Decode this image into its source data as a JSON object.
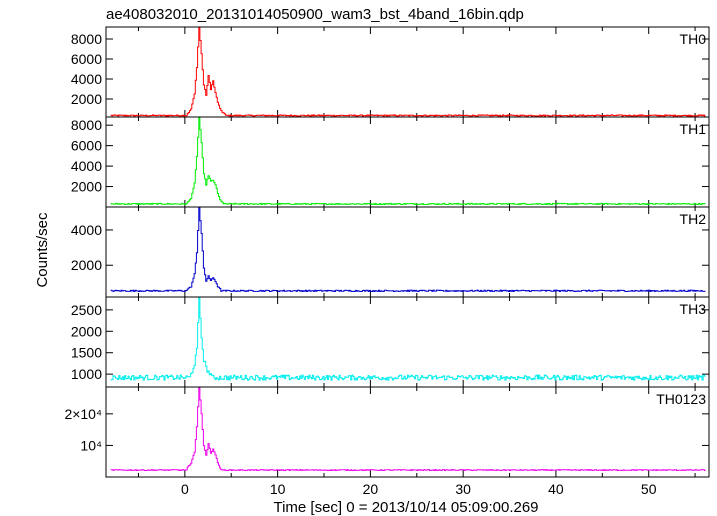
{
  "chart_data": {
    "type": "line",
    "title": "ae408032010_20131014050900_wam3_bst_4band_16bin.qdp",
    "xlabel": "Time [sec] 0 = 2013/10/14 05:09:00.269",
    "ylabel": "Counts/sec",
    "xlim": [
      -8.5,
      56.5
    ],
    "x_ticks": [
      0,
      10,
      20,
      30,
      40,
      50
    ],
    "x_tick_labels": [
      "0",
      "10",
      "20",
      "30",
      "40",
      "50"
    ],
    "grid": false,
    "panels": [
      {
        "name": "TH0",
        "color": "#ff0000",
        "ylim": [
          200,
          9200
        ],
        "y_ticks": [
          2000,
          4000,
          6000,
          8000
        ],
        "y_tick_labels": [
          "2000",
          "4000",
          "6000",
          "8000"
        ],
        "baseline": 350,
        "noise": 60,
        "burst": [
          [
            0.2,
            500
          ],
          [
            0.6,
            900
          ],
          [
            1.0,
            2500
          ],
          [
            1.25,
            5200
          ],
          [
            1.5,
            9200
          ],
          [
            1.75,
            6500
          ],
          [
            2.0,
            3400
          ],
          [
            2.25,
            2400
          ],
          [
            2.5,
            4300
          ],
          [
            2.75,
            3000
          ],
          [
            3.0,
            3800
          ],
          [
            3.25,
            2600
          ],
          [
            3.5,
            1700
          ],
          [
            3.75,
            1000
          ],
          [
            4.0,
            700
          ],
          [
            4.25,
            500
          ]
        ]
      },
      {
        "name": "TH1",
        "color": "#00ee00",
        "ylim": [
          0,
          8800
        ],
        "y_ticks": [
          2000,
          4000,
          6000,
          8000
        ],
        "y_tick_labels": [
          "2000",
          "4000",
          "6000",
          "8000"
        ],
        "baseline": 300,
        "noise": 60,
        "burst": [
          [
            0.2,
            400
          ],
          [
            0.6,
            800
          ],
          [
            1.0,
            2300
          ],
          [
            1.25,
            4900
          ],
          [
            1.5,
            8800
          ],
          [
            1.75,
            6300
          ],
          [
            2.0,
            3200
          ],
          [
            2.25,
            2200
          ],
          [
            2.5,
            3100
          ],
          [
            2.75,
            2500
          ],
          [
            3.0,
            2600
          ],
          [
            3.25,
            2200
          ],
          [
            3.5,
            1300
          ],
          [
            3.75,
            700
          ],
          [
            4.0,
            500
          ]
        ]
      },
      {
        "name": "TH2",
        "color": "#0000cc",
        "ylim": [
          200,
          5300
        ],
        "y_ticks": [
          2000,
          4000
        ],
        "y_tick_labels": [
          "2000",
          "4000"
        ],
        "baseline": 550,
        "noise": 40,
        "burst": [
          [
            0.2,
            650
          ],
          [
            0.6,
            750
          ],
          [
            1.0,
            1500
          ],
          [
            1.25,
            2700
          ],
          [
            1.5,
            5300
          ],
          [
            1.75,
            3800
          ],
          [
            2.0,
            1800
          ],
          [
            2.25,
            1100
          ],
          [
            2.5,
            1400
          ],
          [
            2.75,
            1100
          ],
          [
            3.0,
            1300
          ],
          [
            3.25,
            1100
          ],
          [
            3.5,
            800
          ],
          [
            3.75,
            650
          ]
        ]
      },
      {
        "name": "TH3",
        "color": "#00eeee",
        "ylim": [
          700,
          2800
        ],
        "y_ticks": [
          1000,
          1500,
          2000,
          2500
        ],
        "y_tick_labels": [
          "1000",
          "1500",
          "2000",
          "2500"
        ],
        "baseline": 920,
        "noise": 60,
        "burst": [
          [
            0.6,
            980
          ],
          [
            1.0,
            1250
          ],
          [
            1.25,
            1550
          ],
          [
            1.5,
            2800
          ],
          [
            1.75,
            1850
          ],
          [
            2.0,
            1350
          ],
          [
            2.25,
            1150
          ],
          [
            2.5,
            1050
          ],
          [
            2.75,
            1000
          ]
        ]
      },
      {
        "name": "TH0123",
        "color": "#ee00ee",
        "ylim": [
          0,
          28500
        ],
        "y_ticks": [
          10000,
          20000
        ],
        "y_tick_labels": [
          "10⁴",
          "2×10⁴"
        ],
        "baseline": 2200,
        "noise": 150,
        "burst": [
          [
            0.2,
            3000
          ],
          [
            0.6,
            4000
          ],
          [
            1.0,
            8000
          ],
          [
            1.25,
            16000
          ],
          [
            1.5,
            28500
          ],
          [
            1.75,
            20000
          ],
          [
            2.0,
            10000
          ],
          [
            2.25,
            7000
          ],
          [
            2.5,
            10500
          ],
          [
            2.75,
            7500
          ],
          [
            3.0,
            9000
          ],
          [
            3.25,
            7000
          ],
          [
            3.5,
            4500
          ],
          [
            3.75,
            3000
          ]
        ]
      }
    ]
  }
}
